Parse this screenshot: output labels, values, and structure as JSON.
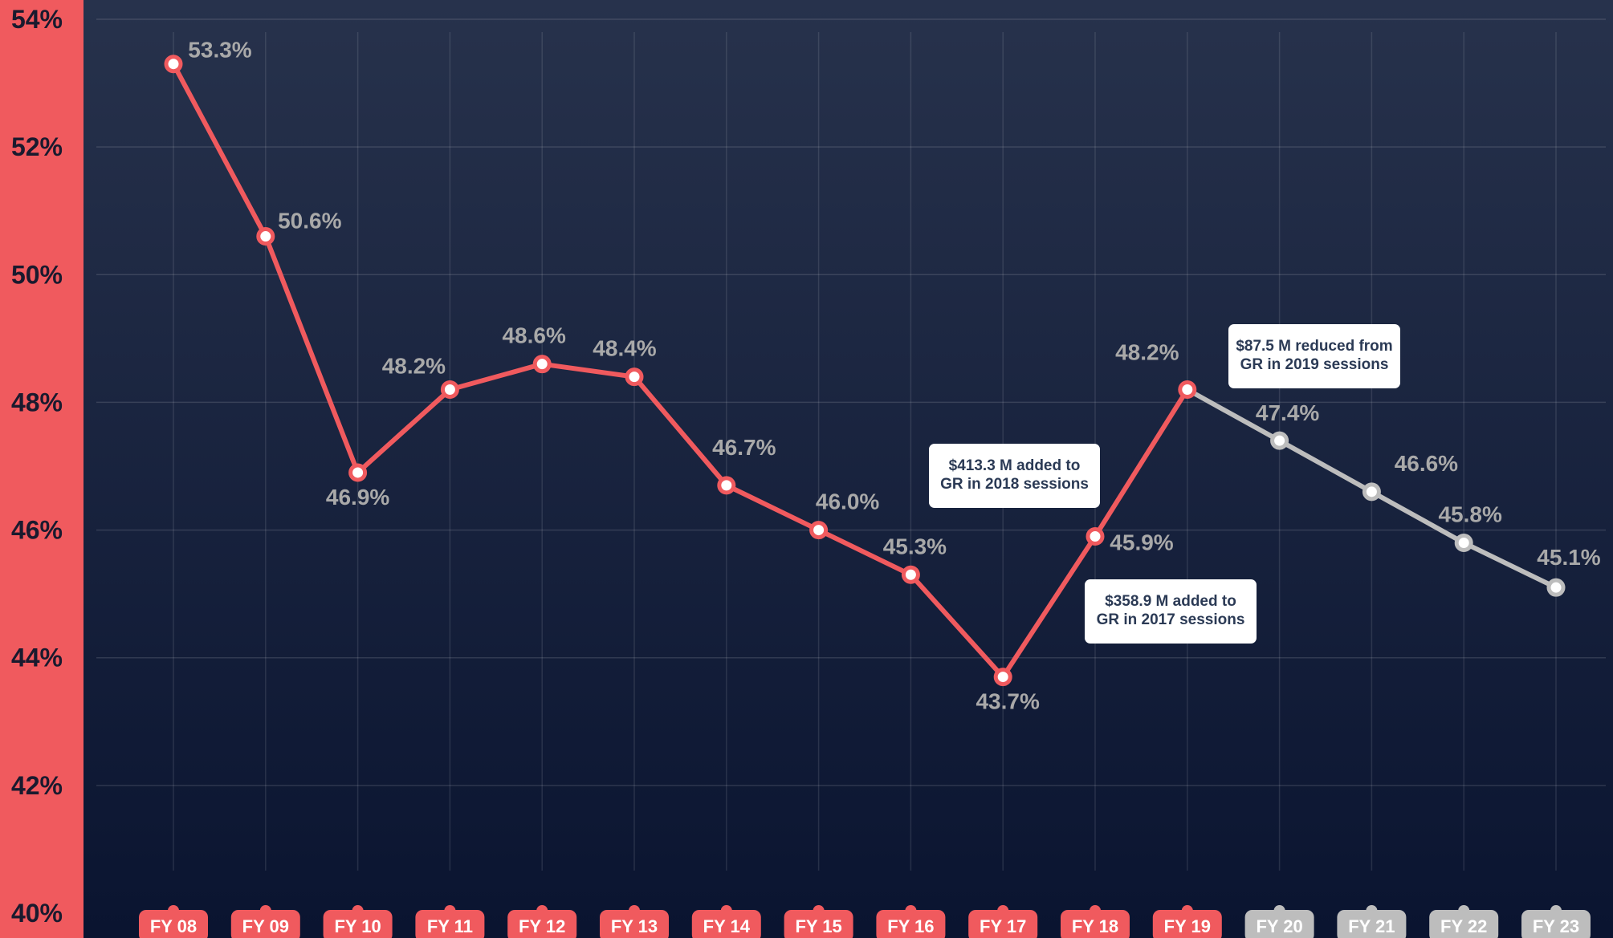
{
  "chart_data": {
    "type": "line",
    "categories": [
      "FY 08",
      "FY 09",
      "FY 10",
      "FY 11",
      "FY 12",
      "FY 13",
      "FY 14",
      "FY 15",
      "FY 16",
      "FY 17",
      "FY 18",
      "FY 19",
      "FY 20",
      "FY 21",
      "FY 22",
      "FY 23"
    ],
    "series": [
      {
        "values": [
          53.3,
          50.6,
          46.9,
          48.2,
          48.6,
          48.4,
          46.7,
          46.0,
          45.3,
          43.7,
          45.9,
          48.2,
          null,
          null,
          null,
          null
        ],
        "color": "#f05a5e"
      },
      {
        "values": [
          null,
          null,
          null,
          null,
          null,
          null,
          null,
          null,
          null,
          null,
          null,
          48.2,
          47.4,
          46.6,
          45.8,
          45.1
        ],
        "color": "#bdbdbd"
      }
    ],
    "data_labels": [
      "53.3%",
      "50.6%",
      "46.9%",
      "48.2%",
      "48.6%",
      "48.4%",
      "46.7%",
      "46.0%",
      "45.3%",
      "43.7%",
      "45.9%",
      "48.2%",
      "47.4%",
      "46.6%",
      "45.8%",
      "45.1%"
    ],
    "y_ticks": [
      {
        "value": 40,
        "label": "40%"
      },
      {
        "value": 42,
        "label": "42%"
      },
      {
        "value": 44,
        "label": "44%"
      },
      {
        "value": 46,
        "label": "46%"
      },
      {
        "value": 48,
        "label": "48%"
      },
      {
        "value": 50,
        "label": "50%"
      },
      {
        "value": 52,
        "label": "52%"
      },
      {
        "value": 54,
        "label": "54%"
      }
    ],
    "ylim": [
      40,
      54
    ],
    "title": "",
    "xlabel": "",
    "ylabel": "",
    "grid": true,
    "annotations": [
      {
        "lines": [
          "$413.3 M added to",
          "GR in 2018 sessions"
        ],
        "near": "FY 17"
      },
      {
        "lines": [
          "$358.9 M added to",
          "GR in 2017 sessions"
        ],
        "near": "FY 18"
      },
      {
        "lines": [
          "$87.5 M reduced from",
          "GR in 2019 sessions"
        ],
        "near": "FY 20"
      }
    ],
    "colors": {
      "actual": "#f05a5e",
      "projected": "#bdbdbd",
      "axis_panel": "#f05a5e",
      "background_top": "#27324c",
      "background_bottom": "#0a1430",
      "label_text": "#a9a9a9",
      "tick_text": "#1a1a2e",
      "annotation_text": "#2b3a55"
    }
  }
}
